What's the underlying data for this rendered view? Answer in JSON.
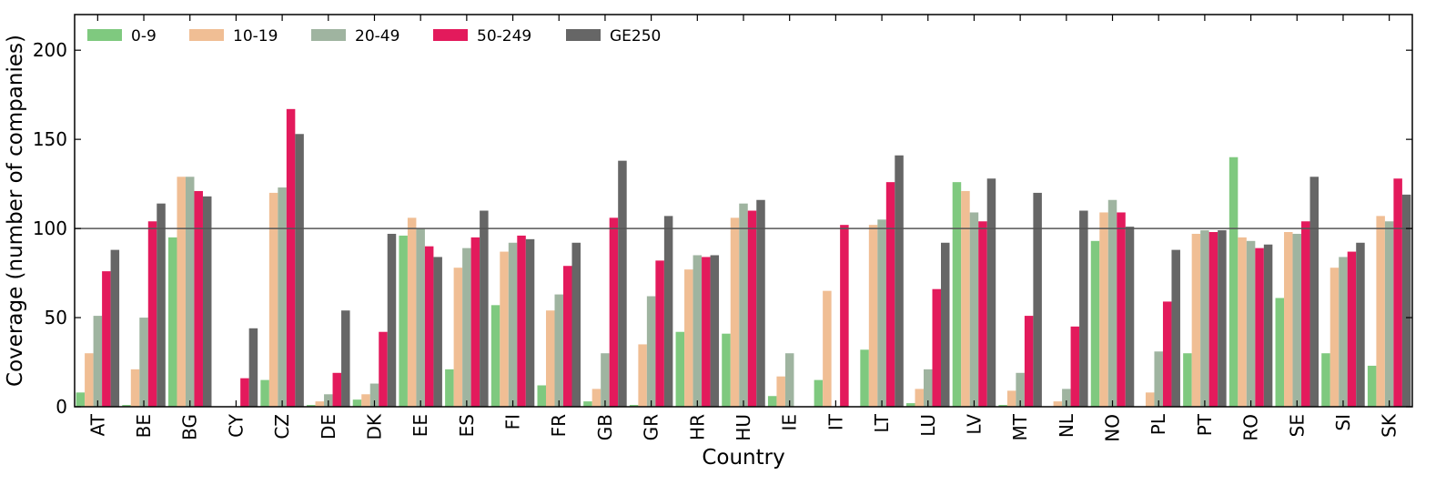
{
  "chart_data": {
    "type": "bar",
    "xlabel": "Country",
    "ylabel": "Coverage (number of companies)",
    "ylim": [
      0,
      220
    ],
    "yticks": [
      0,
      50,
      100,
      150,
      200
    ],
    "reference_line": 100,
    "grid": false,
    "legend_position": "top-left",
    "categories": [
      "AT",
      "BE",
      "BG",
      "CY",
      "CZ",
      "DE",
      "DK",
      "EE",
      "ES",
      "FI",
      "FR",
      "GB",
      "GR",
      "HR",
      "HU",
      "IE",
      "IT",
      "LT",
      "LU",
      "LV",
      "MT",
      "NL",
      "NO",
      "PL",
      "PT",
      "RO",
      "SE",
      "SI",
      "SK"
    ],
    "series": [
      {
        "name": "0-9",
        "color": "#7fc97f",
        "values": [
          8,
          1,
          95,
          0,
          15,
          1,
          4,
          96,
          21,
          57,
          12,
          3,
          1,
          42,
          41,
          6,
          15,
          32,
          2,
          126,
          1,
          0,
          93,
          0,
          30,
          140,
          61,
          30,
          23
        ]
      },
      {
        "name": "10-19",
        "color": "#f0be94",
        "values": [
          30,
          21,
          129,
          0,
          120,
          3,
          7,
          106,
          78,
          87,
          54,
          10,
          35,
          77,
          106,
          17,
          65,
          102,
          10,
          121,
          9,
          3,
          109,
          8,
          97,
          95,
          98,
          78,
          107
        ]
      },
      {
        "name": "20-49",
        "color": "#9fb4a0",
        "values": [
          51,
          50,
          129,
          0,
          123,
          7,
          13,
          100,
          89,
          92,
          63,
          30,
          62,
          85,
          114,
          30,
          0,
          105,
          21,
          109,
          19,
          10,
          116,
          31,
          99,
          93,
          97,
          84,
          104
        ]
      },
      {
        "name": "50-249",
        "color": "#e31a5c",
        "values": [
          76,
          104,
          121,
          16,
          167,
          19,
          42,
          90,
          95,
          96,
          79,
          106,
          82,
          84,
          110,
          0,
          102,
          126,
          66,
          104,
          51,
          45,
          109,
          59,
          98,
          89,
          104,
          87,
          128
        ]
      },
      {
        "name": "GE250",
        "color": "#666666",
        "values": [
          88,
          114,
          118,
          44,
          153,
          54,
          97,
          84,
          110,
          94,
          92,
          138,
          107,
          85,
          116,
          0,
          0,
          141,
          92,
          128,
          120,
          110,
          101,
          88,
          99,
          91,
          129,
          92,
          119
        ]
      }
    ]
  }
}
